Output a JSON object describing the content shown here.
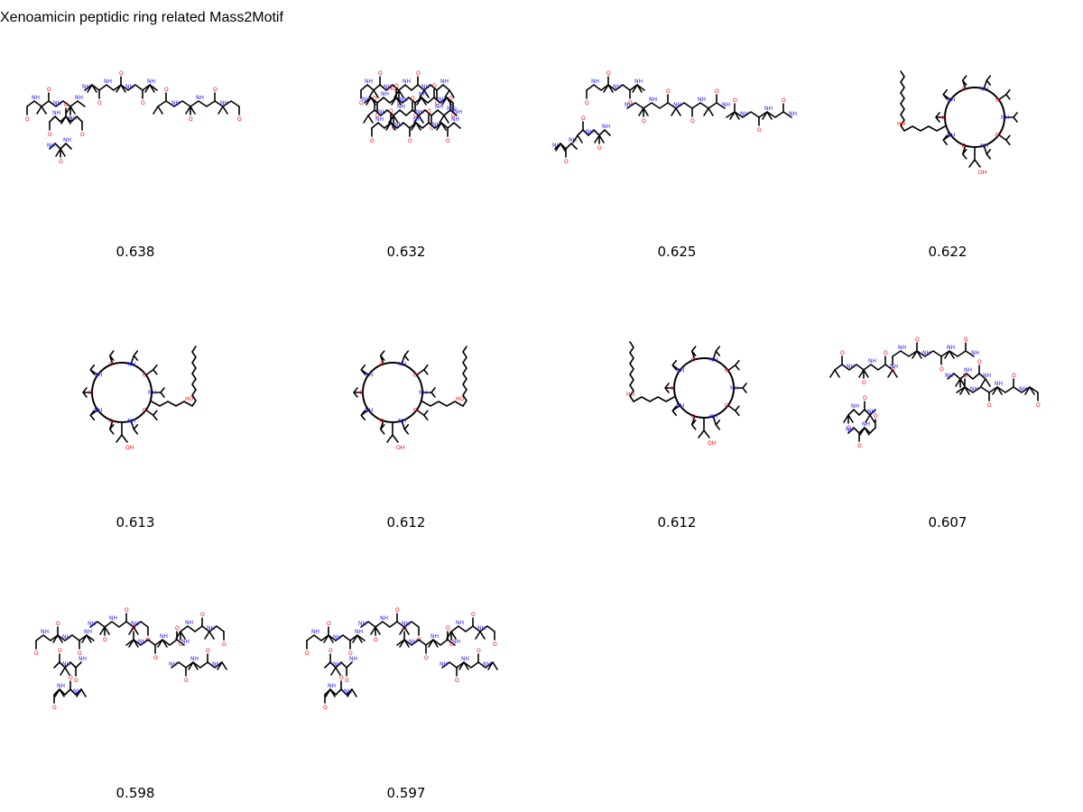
{
  "title": "Xenoamicin peptidic ring related Mass2Motif",
  "colors": {
    "oxygen": "#ff0000",
    "nitrogen": "#2020ff",
    "bond": "#000000"
  },
  "molecules": [
    {
      "score": "0.638",
      "kind": "linear-a"
    },
    {
      "score": "0.632",
      "kind": "compact"
    },
    {
      "score": "0.625",
      "kind": "linear-b"
    },
    {
      "score": "0.622",
      "kind": "cyclic-tail-left"
    },
    {
      "score": "0.613",
      "kind": "cyclic-tail-right"
    },
    {
      "score": "0.612",
      "kind": "cyclic-tail-right"
    },
    {
      "score": "0.612",
      "kind": "cyclic-tail-left"
    },
    {
      "score": "0.607",
      "kind": "linear-c"
    },
    {
      "score": "0.598",
      "kind": "linear-d"
    },
    {
      "score": "0.597",
      "kind": "linear-d"
    }
  ]
}
